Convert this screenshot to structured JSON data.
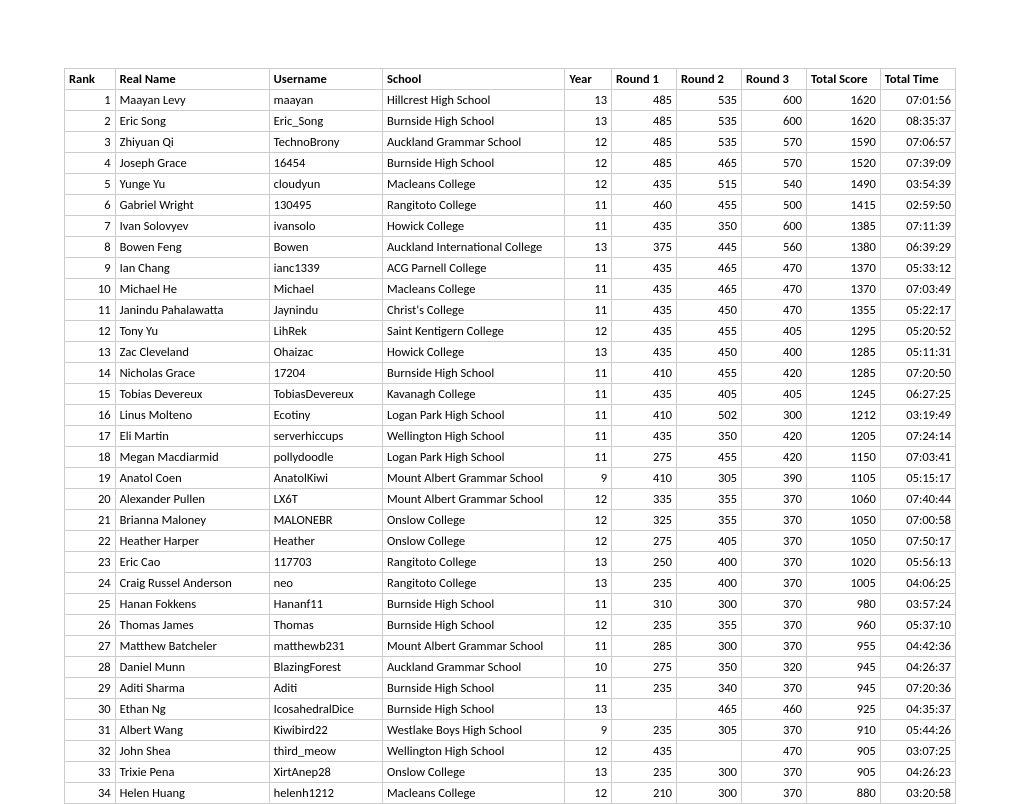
{
  "table": {
    "border_color": "#cccccc",
    "background_color": "#ffffff",
    "text_color": "#000000",
    "font_size": 12.5,
    "columns": [
      {
        "key": "rank",
        "label": "Rank",
        "align": "right"
      },
      {
        "key": "real_name",
        "label": "Real Name",
        "align": "left"
      },
      {
        "key": "username",
        "label": "Username",
        "align": "left"
      },
      {
        "key": "school",
        "label": "School",
        "align": "left"
      },
      {
        "key": "year",
        "label": "Year",
        "align": "right"
      },
      {
        "key": "round1",
        "label": "Round 1",
        "align": "right"
      },
      {
        "key": "round2",
        "label": "Round 2",
        "align": "right"
      },
      {
        "key": "round3",
        "label": "Round 3",
        "align": "right"
      },
      {
        "key": "total_score",
        "label": "Total Score",
        "align": "right"
      },
      {
        "key": "total_time",
        "label": "Total Time",
        "align": "right"
      }
    ],
    "rows": [
      {
        "rank": "1",
        "real_name": "Maayan Levy",
        "username": "maayan",
        "school": "Hillcrest High School",
        "year": "13",
        "round1": "485",
        "round2": "535",
        "round3": "600",
        "total_score": "1620",
        "total_time": "07:01:56"
      },
      {
        "rank": "2",
        "real_name": "Eric Song",
        "username": "Eric_Song",
        "school": "Burnside High School",
        "year": "13",
        "round1": "485",
        "round2": "535",
        "round3": "600",
        "total_score": "1620",
        "total_time": "08:35:37"
      },
      {
        "rank": "3",
        "real_name": "Zhiyuan Qi",
        "username": "TechnoBrony",
        "school": "Auckland Grammar School",
        "year": "12",
        "round1": "485",
        "round2": "535",
        "round3": "570",
        "total_score": "1590",
        "total_time": "07:06:57"
      },
      {
        "rank": "4",
        "real_name": "Joseph Grace",
        "username": "16454",
        "school": "Burnside High School",
        "year": "12",
        "round1": "485",
        "round2": "465",
        "round3": "570",
        "total_score": "1520",
        "total_time": "07:39:09"
      },
      {
        "rank": "5",
        "real_name": "Yunge Yu",
        "username": "cloudyun",
        "school": "Macleans College",
        "year": "12",
        "round1": "435",
        "round2": "515",
        "round3": "540",
        "total_score": "1490",
        "total_time": "03:54:39"
      },
      {
        "rank": "6",
        "real_name": "Gabriel Wright",
        "username": "130495",
        "school": "Rangitoto College",
        "year": "11",
        "round1": "460",
        "round2": "455",
        "round3": "500",
        "total_score": "1415",
        "total_time": "02:59:50"
      },
      {
        "rank": "7",
        "real_name": "Ivan Solovyev",
        "username": "ivansolo",
        "school": "Howick College",
        "year": "11",
        "round1": "435",
        "round2": "350",
        "round3": "600",
        "total_score": "1385",
        "total_time": "07:11:39"
      },
      {
        "rank": "8",
        "real_name": "Bowen Feng",
        "username": "Bowen",
        "school": "Auckland International College",
        "year": "13",
        "round1": "375",
        "round2": "445",
        "round3": "560",
        "total_score": "1380",
        "total_time": "06:39:29"
      },
      {
        "rank": "9",
        "real_name": "Ian Chang",
        "username": "ianc1339",
        "school": "ACG Parnell College",
        "year": "11",
        "round1": "435",
        "round2": "465",
        "round3": "470",
        "total_score": "1370",
        "total_time": "05:33:12"
      },
      {
        "rank": "10",
        "real_name": "Michael He",
        "username": "Michael",
        "school": "Macleans College",
        "year": "11",
        "round1": "435",
        "round2": "465",
        "round3": "470",
        "total_score": "1370",
        "total_time": "07:03:49"
      },
      {
        "rank": "11",
        "real_name": "Janindu Pahalawatta",
        "username": "Jaynindu",
        "school": "Christ's College",
        "year": "11",
        "round1": "435",
        "round2": "450",
        "round3": "470",
        "total_score": "1355",
        "total_time": "05:22:17"
      },
      {
        "rank": "12",
        "real_name": "Tony Yu",
        "username": "LihRek",
        "school": "Saint Kentigern College",
        "year": "12",
        "round1": "435",
        "round2": "455",
        "round3": "405",
        "total_score": "1295",
        "total_time": "05:20:52"
      },
      {
        "rank": "13",
        "real_name": "Zac Cleveland",
        "username": "Ohaizac",
        "school": "Howick College",
        "year": "13",
        "round1": "435",
        "round2": "450",
        "round3": "400",
        "total_score": "1285",
        "total_time": "05:11:31"
      },
      {
        "rank": "14",
        "real_name": "Nicholas Grace",
        "username": "17204",
        "school": "Burnside High School",
        "year": "11",
        "round1": "410",
        "round2": "455",
        "round3": "420",
        "total_score": "1285",
        "total_time": "07:20:50"
      },
      {
        "rank": "15",
        "real_name": "Tobias Devereux",
        "username": "TobiasDevereux",
        "school": "Kavanagh College",
        "year": "11",
        "round1": "435",
        "round2": "405",
        "round3": "405",
        "total_score": "1245",
        "total_time": "06:27:25"
      },
      {
        "rank": "16",
        "real_name": "Linus Molteno",
        "username": "Ecotiny",
        "school": "Logan Park High School",
        "year": "11",
        "round1": "410",
        "round2": "502",
        "round3": "300",
        "total_score": "1212",
        "total_time": "03:19:49"
      },
      {
        "rank": "17",
        "real_name": "Eli Martin",
        "username": "serverhiccups",
        "school": "Wellington High School",
        "year": "11",
        "round1": "435",
        "round2": "350",
        "round3": "420",
        "total_score": "1205",
        "total_time": "07:24:14"
      },
      {
        "rank": "18",
        "real_name": "Megan Macdiarmid",
        "username": "pollydoodle",
        "school": "Logan Park High School",
        "year": "11",
        "round1": "275",
        "round2": "455",
        "round3": "420",
        "total_score": "1150",
        "total_time": "07:03:41"
      },
      {
        "rank": "19",
        "real_name": "Anatol Coen",
        "username": "AnatolKiwi",
        "school": "Mount Albert Grammar School",
        "year": "9",
        "round1": "410",
        "round2": "305",
        "round3": "390",
        "total_score": "1105",
        "total_time": "05:15:17"
      },
      {
        "rank": "20",
        "real_name": "Alexander Pullen",
        "username": "LX6T",
        "school": "Mount Albert Grammar School",
        "year": "12",
        "round1": "335",
        "round2": "355",
        "round3": "370",
        "total_score": "1060",
        "total_time": "07:40:44"
      },
      {
        "rank": "21",
        "real_name": "Brianna Maloney",
        "username": "MALONEBR",
        "school": "Onslow College",
        "year": "12",
        "round1": "325",
        "round2": "355",
        "round3": "370",
        "total_score": "1050",
        "total_time": "07:00:58"
      },
      {
        "rank": "22",
        "real_name": "Heather Harper",
        "username": "Heather",
        "school": "Onslow College",
        "year": "12",
        "round1": "275",
        "round2": "405",
        "round3": "370",
        "total_score": "1050",
        "total_time": "07:50:17"
      },
      {
        "rank": "23",
        "real_name": "Eric Cao",
        "username": "117703",
        "school": "Rangitoto College",
        "year": "13",
        "round1": "250",
        "round2": "400",
        "round3": "370",
        "total_score": "1020",
        "total_time": "05:56:13"
      },
      {
        "rank": "24",
        "real_name": "Craig Russel Anderson",
        "username": "neo",
        "school": "Rangitoto College",
        "year": "13",
        "round1": "235",
        "round2": "400",
        "round3": "370",
        "total_score": "1005",
        "total_time": "04:06:25"
      },
      {
        "rank": "25",
        "real_name": "Hanan Fokkens",
        "username": "Hananf11",
        "school": "Burnside High School",
        "year": "11",
        "round1": "310",
        "round2": "300",
        "round3": "370",
        "total_score": "980",
        "total_time": "03:57:24"
      },
      {
        "rank": "26",
        "real_name": "Thomas James",
        "username": "Thomas",
        "school": "Burnside High School",
        "year": "12",
        "round1": "235",
        "round2": "355",
        "round3": "370",
        "total_score": "960",
        "total_time": "05:37:10"
      },
      {
        "rank": "27",
        "real_name": "Matthew Batcheler",
        "username": "matthewb231",
        "school": "Mount Albert Grammar School",
        "year": "11",
        "round1": "285",
        "round2": "300",
        "round3": "370",
        "total_score": "955",
        "total_time": "04:42:36"
      },
      {
        "rank": "28",
        "real_name": "Daniel Munn",
        "username": "BlazingForest",
        "school": "Auckland Grammar School",
        "year": "10",
        "round1": "275",
        "round2": "350",
        "round3": "320",
        "total_score": "945",
        "total_time": "04:26:37"
      },
      {
        "rank": "29",
        "real_name": "Aditi Sharma",
        "username": "Aditi",
        "school": "Burnside High School",
        "year": "11",
        "round1": "235",
        "round2": "340",
        "round3": "370",
        "total_score": "945",
        "total_time": "07:20:36"
      },
      {
        "rank": "30",
        "real_name": "Ethan Ng",
        "username": "IcosahedralDice",
        "school": "Burnside High School",
        "year": "13",
        "round1": "",
        "round2": "465",
        "round3": "460",
        "total_score": "925",
        "total_time": "04:35:37"
      },
      {
        "rank": "31",
        "real_name": "Albert Wang",
        "username": "Kiwibird22",
        "school": "Westlake Boys High School",
        "year": "9",
        "round1": "235",
        "round2": "305",
        "round3": "370",
        "total_score": "910",
        "total_time": "05:44:26"
      },
      {
        "rank": "32",
        "real_name": "John Shea",
        "username": "third_meow",
        "school": "Wellington High School",
        "year": "12",
        "round1": "435",
        "round2": "",
        "round3": "470",
        "total_score": "905",
        "total_time": "03:07:25"
      },
      {
        "rank": "33",
        "real_name": "Trixie Pena",
        "username": "XirtAnep28",
        "school": "Onslow College",
        "year": "13",
        "round1": "235",
        "round2": "300",
        "round3": "370",
        "total_score": "905",
        "total_time": "04:26:23"
      },
      {
        "rank": "34",
        "real_name": "Helen Huang",
        "username": "helenh1212",
        "school": "Macleans College",
        "year": "12",
        "round1": "210",
        "round2": "300",
        "round3": "370",
        "total_score": "880",
        "total_time": "03:20:58"
      }
    ]
  }
}
